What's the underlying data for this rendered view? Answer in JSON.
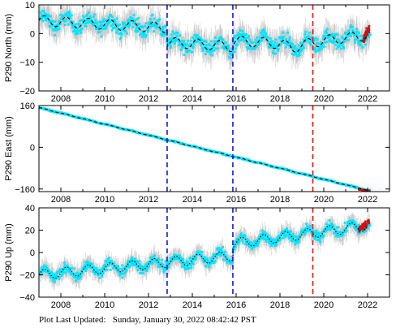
{
  "footer": {
    "label": "Plot Last Updated:",
    "timestamp": "Sunday, January 30, 2022 08:42:42 PST"
  },
  "colors": {
    "data_scatter": "#00e5ff",
    "error_bars": "#a8a8a8",
    "model_line": "#000000",
    "equipment_offset": "#1515d6",
    "earthquake_offset": "#e01515",
    "recent_data": "#d01010"
  },
  "chart_data": [
    {
      "type": "scatter",
      "ylabel": "P290 North (mm)",
      "xlim": [
        2007.0,
        2023.0
      ],
      "ylim": [
        -20,
        10
      ],
      "x_ticks": [
        2008,
        2010,
        2012,
        2014,
        2016,
        2018,
        2020,
        2022
      ],
      "x_tick_labels": [
        "2008",
        "2010",
        "2012",
        "2014",
        "2016",
        "2018",
        "2020",
        "2022"
      ],
      "y_ticks": [
        -20,
        -10,
        0,
        10
      ],
      "y_tick_labels": [
        "−20",
        "−10",
        "0",
        "10"
      ],
      "grid": false,
      "equipment_offsets": [
        2012.85,
        2015.85
      ],
      "earthquake_offsets": [
        2019.5
      ],
      "model": [
        {
          "x": 2007.0,
          "y": 4.5
        },
        {
          "x": 2012.85,
          "y": 2.0
        },
        {
          "x": 2012.86,
          "y": -3.0
        },
        {
          "x": 2015.85,
          "y": -4.5
        },
        {
          "x": 2015.86,
          "y": -2.5
        },
        {
          "x": 2018.0,
          "y": -3.5
        },
        {
          "x": 2018.6,
          "y": -5.0
        },
        {
          "x": 2019.5,
          "y": -3.0
        },
        {
          "x": 2022.0,
          "y": -0.5
        }
      ],
      "seasonal_amplitude": 1.8,
      "scatter_spread": 4.5,
      "latest_values_x": [
        2021.8,
        2022.08
      ],
      "latest_values_y": [
        -2.5,
        2.0
      ]
    },
    {
      "type": "scatter",
      "ylabel": "P290 East (mm)",
      "xlim": [
        2007.0,
        2023.0
      ],
      "ylim": [
        -170,
        160
      ],
      "x_ticks": [
        2008,
        2010,
        2012,
        2014,
        2016,
        2018,
        2020,
        2022
      ],
      "x_tick_labels": [
        "2008",
        "2010",
        "2012",
        "2014",
        "2016",
        "2018",
        "2020",
        "2022"
      ],
      "y_ticks": [
        -160,
        0,
        160
      ],
      "y_tick_labels": [
        "−160",
        "0",
        "160"
      ],
      "grid": false,
      "equipment_offsets": [
        2012.85,
        2015.85
      ],
      "earthquake_offsets": [
        2019.5
      ],
      "model": [
        {
          "x": 2007.0,
          "y": 152.0
        },
        {
          "x": 2022.0,
          "y": -165.0
        }
      ],
      "seasonal_amplitude": 1.0,
      "scatter_spread": 4.0,
      "latest_values_x": [
        2021.6,
        2022.08
      ],
      "latest_values_y": [
        -162.0,
        -168.0
      ]
    },
    {
      "type": "scatter",
      "ylabel": "P290 Up (mm)",
      "xlim": [
        2007.0,
        2023.0
      ],
      "ylim": [
        -40,
        40
      ],
      "x_ticks": [
        2008,
        2010,
        2012,
        2014,
        2016,
        2018,
        2020,
        2022
      ],
      "x_tick_labels": [
        "2008",
        "2010",
        "2012",
        "2014",
        "2016",
        "2018",
        "2020",
        "2022"
      ],
      "y_ticks": [
        -40,
        -20,
        0,
        20,
        40
      ],
      "y_tick_labels": [
        "−40",
        "−20",
        "0",
        "20",
        "40"
      ],
      "grid": false,
      "equipment_offsets": [
        2012.85,
        2015.85
      ],
      "earthquake_offsets": [
        2019.5
      ],
      "model": [
        {
          "x": 2007.0,
          "y": -20.0
        },
        {
          "x": 2015.85,
          "y": -3.0
        },
        {
          "x": 2015.86,
          "y": 8.0
        },
        {
          "x": 2022.0,
          "y": 24.0
        }
      ],
      "seasonal_amplitude": 4.5,
      "scatter_spread": 8.0,
      "latest_values_x": [
        2021.6,
        2022.08
      ],
      "latest_values_y": [
        20.0,
        28.0
      ]
    }
  ]
}
